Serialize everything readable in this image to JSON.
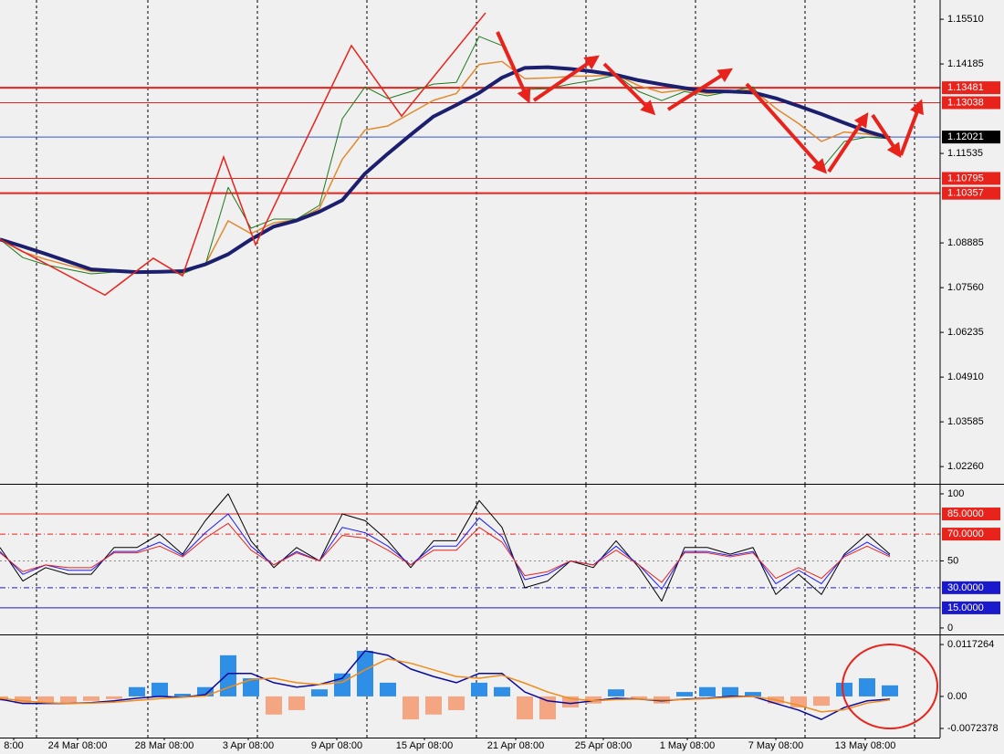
{
  "chart_data": [
    {
      "type": "line",
      "xlim": [
        0,
        103
      ],
      "ylim": [
        1.0175,
        1.1608
      ],
      "xgrid": [
        4,
        16.2,
        28.2,
        40.2,
        52.2,
        64.2,
        76.2,
        88.2,
        100.2
      ],
      "yticks": [
        {
          "value": 1.1551,
          "label": "1.15510"
        },
        1.14185,
        1.11535,
        1.08885,
        {
          "value": 1.0756,
          "label": "1.07560"
        },
        1.06235,
        {
          "value": 1.0491,
          "label": "1.04910"
        },
        1.03585,
        {
          "value": 1.0226,
          "label": "1.02260"
        }
      ],
      "x": [
        0,
        2.5,
        5,
        7.5,
        10,
        12.5,
        15,
        17.5,
        20,
        22.5,
        25,
        27.5,
        30,
        32.5,
        35,
        37.5,
        40,
        42.5,
        45,
        47.5,
        50,
        52.5,
        55,
        57.5,
        60,
        62.5,
        65,
        67.5,
        70,
        72.5,
        75,
        77.5,
        80,
        82.5,
        85,
        87.5,
        90,
        92.5,
        95,
        97.5
      ],
      "lines": [
        {
          "color": "#e08a2e",
          "width": 1.5,
          "values": [
            1.0899,
            1.0862,
            1.084,
            1.0822,
            1.0804,
            1.0804,
            1.0802,
            1.0804,
            1.0801,
            1.0825,
            1.0954,
            1.0916,
            1.0948,
            1.0957,
            1.0991,
            1.1136,
            1.1223,
            1.1235,
            1.1273,
            1.1311,
            1.1331,
            1.1417,
            1.1426,
            1.1375,
            1.1377,
            1.1382,
            1.1383,
            1.1386,
            1.1354,
            1.1334,
            1.1342,
            1.1331,
            1.1337,
            1.1343,
            1.1287,
            1.1242,
            1.1189,
            1.1217,
            1.1211,
            1.1198
          ]
        },
        {
          "color": "#1f7a1f",
          "width": 1,
          "values": [
            1.0899,
            1.0845,
            1.0824,
            1.081,
            1.0797,
            1.0802,
            1.0802,
            1.0805,
            1.0797,
            1.0824,
            1.1053,
            1.0932,
            1.0959,
            1.0959,
            1.1,
            1.1256,
            1.1351,
            1.1316,
            1.1337,
            1.1359,
            1.1364,
            1.15,
            1.1473,
            1.1343,
            1.1345,
            1.1359,
            1.137,
            1.1386,
            1.1337,
            1.131,
            1.1337,
            1.1324,
            1.1337,
            1.1351,
            1.1256,
            1.1189,
            1.1108,
            1.1189,
            1.1202,
            1.1197
          ]
        },
        {
          "color": "#1c1f6e",
          "width": 4,
          "values": [
            1.0899,
            1.0878,
            1.0856,
            1.0833,
            1.081,
            1.0806,
            1.0802,
            1.0803,
            1.0805,
            1.0825,
            1.0855,
            1.0899,
            1.0937,
            1.0955,
            1.0981,
            1.1015,
            1.1094,
            1.1153,
            1.1209,
            1.1263,
            1.1297,
            1.1333,
            1.1378,
            1.1407,
            1.1409,
            1.1404,
            1.1396,
            1.1386,
            1.137,
            1.1358,
            1.1347,
            1.1338,
            1.1337,
            1.1334,
            1.1317,
            1.1294,
            1.127,
            1.1244,
            1.1219,
            1.1199
          ]
        }
      ],
      "zigzag": {
        "color": "#e8231c",
        "x": [
          0,
          11.5,
          16.8,
          20,
          24.5,
          28,
          38.5,
          44,
          53.2
        ],
        "values": [
          1.0899,
          1.0734,
          1.0843,
          1.0791,
          1.1143,
          1.0883,
          1.1473,
          1.1264,
          1.157
        ]
      },
      "levels": [
        {
          "value": 1.13481,
          "color": "#e8231c",
          "width": 2,
          "style": "solid",
          "box": "#e8231c"
        },
        {
          "value": 1.13038,
          "color": "#e8231c",
          "width": 1,
          "style": "solid",
          "box": "#e8231c"
        },
        {
          "value": 1.12021,
          "color": "#3355cc",
          "width": 1,
          "style": "solid",
          "box": "#000000"
        },
        {
          "value": 1.10795,
          "color": "#e8231c",
          "width": 1,
          "style": "solid",
          "box": "#e8231c"
        },
        {
          "value": 1.10357,
          "color": "#e8231c",
          "width": 2,
          "style": "solid",
          "box": "#e8231c"
        }
      ]
    },
    {
      "type": "line",
      "xlim": [
        0,
        103
      ],
      "ylim": [
        -4.8,
        106.8
      ],
      "yticks": [
        100,
        50,
        0
      ],
      "x": [
        0,
        2.5,
        5,
        7.5,
        10,
        12.5,
        15,
        17.5,
        20,
        22.5,
        25,
        27.5,
        30,
        32.5,
        35,
        37.5,
        40,
        42.5,
        45,
        47.5,
        50,
        52.5,
        55,
        57.5,
        60,
        62.5,
        65,
        67.5,
        70,
        72.5,
        75,
        77.5,
        80,
        82.5,
        85,
        87.5,
        90,
        92.5,
        95,
        97.5
      ],
      "lines": [
        {
          "color": "#000000",
          "width": 1,
          "values": [
            60,
            35,
            45,
            40,
            40,
            60,
            60,
            70,
            55,
            80,
            100,
            65,
            45,
            60,
            50,
            85,
            80,
            65,
            45,
            65,
            65,
            95,
            75,
            30,
            35,
            50,
            45,
            65,
            45,
            20,
            60,
            60,
            55,
            60,
            25,
            40,
            25,
            55,
            70,
            55
          ]
        },
        {
          "color": "#1a1aff",
          "width": 1,
          "values": [
            57,
            40,
            47,
            43,
            43,
            57,
            57,
            64,
            54,
            71,
            85,
            61,
            47,
            57,
            50,
            75,
            71,
            61,
            47,
            61,
            61,
            82,
            68,
            36,
            40,
            50,
            47,
            61,
            47,
            29,
            57,
            57,
            54,
            57,
            33,
            43,
            33,
            54,
            64,
            54
          ]
        },
        {
          "color": "#e8231c",
          "width": 1,
          "values": [
            56,
            42,
            47,
            45,
            45,
            56,
            56,
            61,
            53,
            67,
            78,
            58,
            47,
            56,
            50,
            69,
            67,
            58,
            47,
            58,
            58,
            75,
            64,
            39,
            42,
            50,
            47,
            58,
            47,
            34,
            56,
            56,
            53,
            56,
            37,
            45,
            37,
            53,
            61,
            53
          ]
        }
      ],
      "levels": [
        {
          "value": 85,
          "label": "85.0000",
          "color": "#e8231c",
          "width": 1,
          "style": "solid",
          "box": "#e8231c"
        },
        {
          "value": 70,
          "label": "70.0000",
          "color": "#e8231c",
          "width": 1,
          "style": "dashdot",
          "box": "#e8231c"
        },
        {
          "value": 50,
          "color": "#888888",
          "width": 1,
          "style": "dotted"
        },
        {
          "value": 30,
          "label": "30.0000",
          "color": "#1a1acc",
          "width": 1,
          "style": "dashdot",
          "box": "#1a1acc"
        },
        {
          "value": 15,
          "label": "15.0000",
          "color": "#1a1acc",
          "width": 1,
          "style": "solid",
          "box": "#1a1acc"
        }
      ]
    },
    {
      "type": "bar",
      "xlim": [
        0,
        103
      ],
      "ylim": [
        -0.0093,
        0.0136
      ],
      "yticks": [
        0.0117264,
        {
          "value": 0,
          "label": "0.00"
        },
        -0.0072378
      ],
      "xticks": [
        {
          "value": 1.5,
          "label": "8:00"
        },
        {
          "value": 8.5,
          "label": "24 Mar 08:00"
        },
        {
          "value": 18,
          "label": "28 Mar 08:00"
        },
        {
          "value": 27.2,
          "label": "3 Apr 08:00"
        },
        {
          "value": 36.9,
          "label": "9 Apr 08:00"
        },
        {
          "value": 46.5,
          "label": "15 Apr 08:00"
        },
        {
          "value": 56.5,
          "label": "21 Apr 08:00"
        },
        {
          "value": 66.1,
          "label": "25 Apr 08:00"
        },
        {
          "value": 75.3,
          "label": "1 May 08:00"
        },
        {
          "value": 85,
          "label": "7 May 08:00"
        },
        {
          "value": 94.8,
          "label": "13 May 08:00"
        }
      ],
      "x": [
        0,
        2.5,
        5,
        7.5,
        10,
        12.5,
        15,
        17.5,
        20,
        22.5,
        25,
        27.5,
        30,
        32.5,
        35,
        37.5,
        40,
        42.5,
        45,
        47.5,
        50,
        52.5,
        55,
        57.5,
        60,
        62.5,
        65,
        67.5,
        70,
        72.5,
        75,
        77.5,
        80,
        82.5,
        85,
        87.5,
        90,
        92.5,
        95,
        97.5
      ],
      "values": [
        -0.001,
        -0.0016,
        -0.0016,
        -0.0014,
        -0.001,
        -0.0006,
        0.0021,
        0.0031,
        0.0006,
        0.0021,
        0.0093,
        0.0041,
        -0.0041,
        -0.0031,
        0.0016,
        0.0052,
        0.0103,
        0.0031,
        -0.0052,
        -0.0041,
        -0.0031,
        0.0031,
        0.0021,
        -0.0052,
        -0.0052,
        -0.0025,
        -0.0016,
        0.0016,
        -0.0006,
        -0.0016,
        0.001,
        0.0021,
        0.0021,
        0.001,
        -0.0016,
        -0.0025,
        -0.0021,
        0.0031,
        0.0041,
        0.0025
      ],
      "positive_color": "#2f8fe6",
      "negative_color": "#f4a582",
      "lines": [
        {
          "color": "#0a0aa0",
          "width": 1.5,
          "values": [
            -0.0006,
            -0.0016,
            -0.0016,
            -0.0016,
            -0.0014,
            -0.001,
            -0.0004,
            0,
            -0.0002,
            0.0004,
            0.0052,
            0.0052,
            0.0031,
            0.0021,
            0.0027,
            0.0041,
            0.0103,
            0.0093,
            0.0062,
            0.0045,
            0.0031,
            0.0052,
            0.0052,
            0.001,
            -0.001,
            -0.0016,
            -0.001,
            -0.0004,
            -0.0006,
            -0.001,
            -0.0006,
            -0.0004,
            0,
            0,
            -0.0016,
            -0.0031,
            -0.0052,
            -0.0025,
            -0.001,
            -0.0006
          ]
        },
        {
          "color": "#f08c1a",
          "width": 1.5,
          "values": [
            -0.0004,
            -0.001,
            -0.0014,
            -0.0016,
            -0.0015,
            -0.0013,
            -0.0009,
            -0.0005,
            -0.0002,
            0.0001,
            0.002,
            0.0038,
            0.0041,
            0.0031,
            0.0027,
            0.0032,
            0.006,
            0.0085,
            0.0075,
            0.006,
            0.0045,
            0.0041,
            0.0048,
            0.003,
            0.001,
            -0.0005,
            -0.001,
            -0.0007,
            -0.0006,
            -0.0008,
            -0.0007,
            -0.0005,
            -0.0002,
            0,
            -0.0008,
            -0.002,
            -0.0035,
            -0.003,
            -0.0015,
            -0.0008
          ]
        }
      ]
    }
  ]
}
